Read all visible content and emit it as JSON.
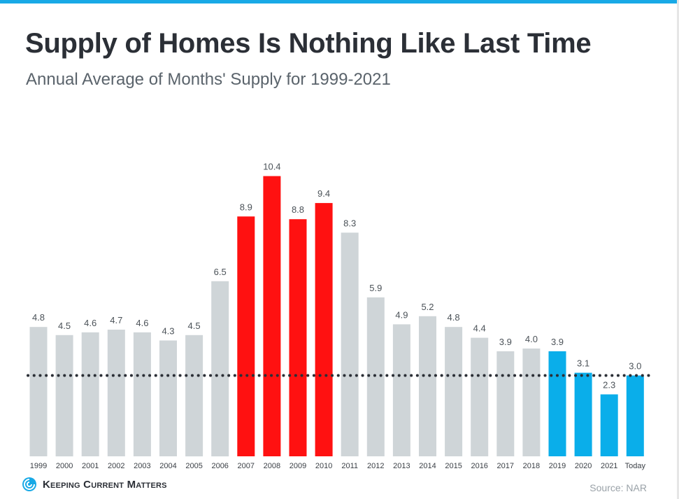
{
  "title": "Supply of Homes Is Nothing Like Last Time",
  "subtitle": "Annual Average of Months' Supply for 1999-2021",
  "brand": "Keeping Current Matters",
  "source": "Source: NAR",
  "colors": {
    "accent": "#18a9e6",
    "gray_bar": "#cfd5d8",
    "red_bar": "#ff1111",
    "blue_bar": "#0aaeea",
    "reference_line": "#2b2f36"
  },
  "chart_data": {
    "type": "bar",
    "title": "Supply of Homes Is Nothing Like Last Time",
    "subtitle": "Annual Average of Months' Supply for 1999-2021",
    "xlabel": "",
    "ylabel": "",
    "ylim": [
      0,
      11
    ],
    "grid": false,
    "legend": "none",
    "categories": [
      "1999",
      "2000",
      "2001",
      "2002",
      "2003",
      "2004",
      "2005",
      "2006",
      "2007",
      "2008",
      "2009",
      "2010",
      "2011",
      "2012",
      "2013",
      "2014",
      "2015",
      "2016",
      "2017",
      "2018",
      "2019",
      "2020",
      "2021",
      "Today"
    ],
    "values": [
      4.8,
      4.5,
      4.6,
      4.7,
      4.6,
      4.3,
      4.5,
      6.5,
      8.9,
      10.4,
      8.8,
      9.4,
      8.3,
      5.9,
      4.9,
      5.2,
      4.8,
      4.4,
      3.9,
      4.0,
      3.9,
      3.1,
      2.3,
      3.0
    ],
    "value_labels": [
      "4.8",
      "4.5",
      "4.6",
      "4.7",
      "4.6",
      "4.3",
      "4.5",
      "6.5",
      "8.9",
      "10.4",
      "8.8",
      "9.4",
      "8.3",
      "5.9",
      "4.9",
      "5.2",
      "4.8",
      "4.4",
      "3.9",
      "4.0",
      "3.9",
      "3.1",
      "2.3",
      "3.0"
    ],
    "bar_colors": [
      "gray",
      "gray",
      "gray",
      "gray",
      "gray",
      "gray",
      "gray",
      "gray",
      "red",
      "red",
      "red",
      "red",
      "gray",
      "gray",
      "gray",
      "gray",
      "gray",
      "gray",
      "gray",
      "gray",
      "blue",
      "blue",
      "blue",
      "blue"
    ],
    "reference_line": {
      "value": 3.0,
      "style": "dotted"
    }
  }
}
